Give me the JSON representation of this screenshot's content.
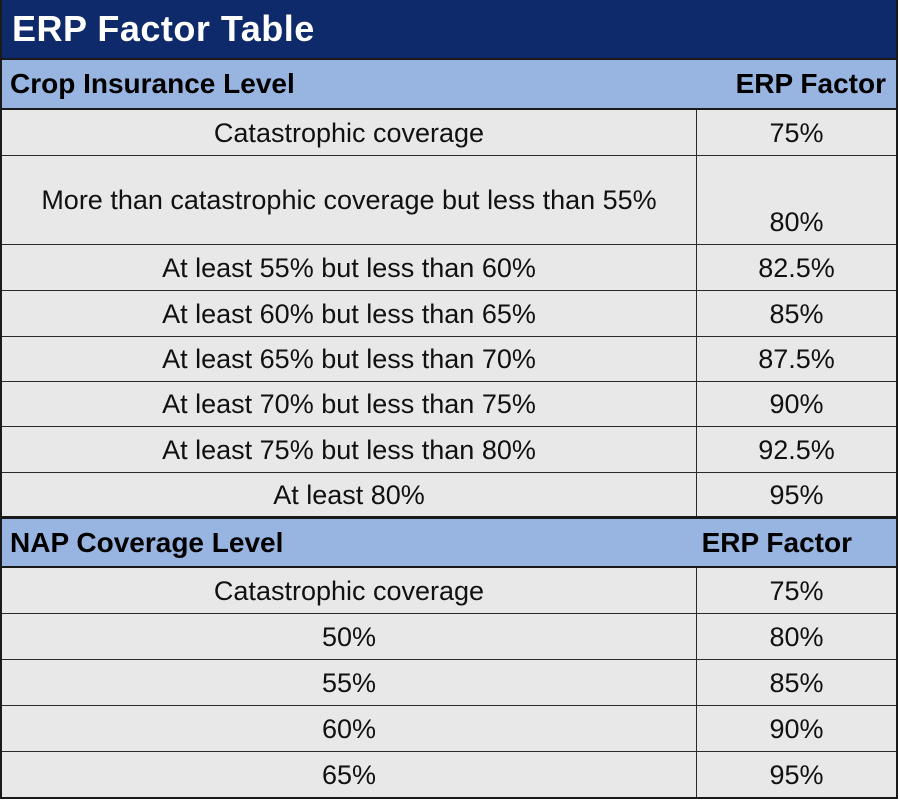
{
  "title": "ERP Factor Table",
  "colors": {
    "title_bg": "#0f2a6a",
    "header_bg": "#98b4e0",
    "row_bg": "#e8e8e8"
  },
  "crop_section": {
    "header_left": "Crop Insurance Level",
    "header_right": "ERP Factor",
    "rows": [
      {
        "level": "Catastrophic coverage",
        "factor": "75%"
      },
      {
        "level": "More than catastrophic coverage but less than 55%",
        "factor": "80%"
      },
      {
        "level": "At least 55% but less than 60%",
        "factor": "82.5%"
      },
      {
        "level": "At least 60% but less than 65%",
        "factor": "85%"
      },
      {
        "level": "At least 65% but less than 70%",
        "factor": "87.5%"
      },
      {
        "level": "At least 70% but less than 75%",
        "factor": "90%"
      },
      {
        "level": "At least 75% but less than 80%",
        "factor": "92.5%"
      },
      {
        "level": "At least 80%",
        "factor": "95%"
      }
    ]
  },
  "nap_section": {
    "header_left": "NAP Coverage Level",
    "header_right": "ERP Factor",
    "rows": [
      {
        "level": "Catastrophic coverage",
        "factor": "75%"
      },
      {
        "level": "50%",
        "factor": "80%"
      },
      {
        "level": "55%",
        "factor": "85%"
      },
      {
        "level": "60%",
        "factor": "90%"
      },
      {
        "level": "65%",
        "factor": "95%"
      }
    ]
  }
}
